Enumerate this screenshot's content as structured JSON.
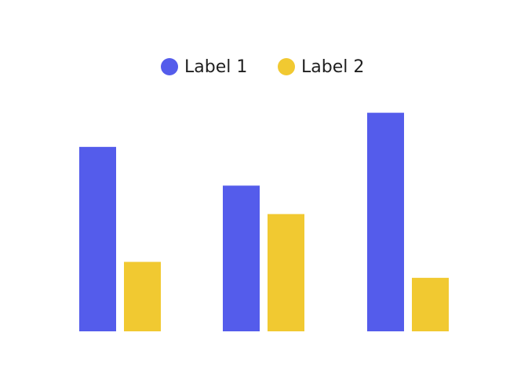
{
  "chart_data": {
    "type": "bar",
    "categories": [
      "",
      "",
      ""
    ],
    "series": [
      {
        "name": "Label 1",
        "color": "#545ceb",
        "values": [
          8.1,
          6.4,
          9.6
        ]
      },
      {
        "name": "Label 2",
        "color": "#f1c931",
        "values": [
          3.05,
          5.15,
          2.35
        ]
      }
    ],
    "ylim": [
      0,
      10
    ],
    "grid": false,
    "legend": "top-center",
    "title": "",
    "xlabel": "",
    "ylabel": ""
  }
}
